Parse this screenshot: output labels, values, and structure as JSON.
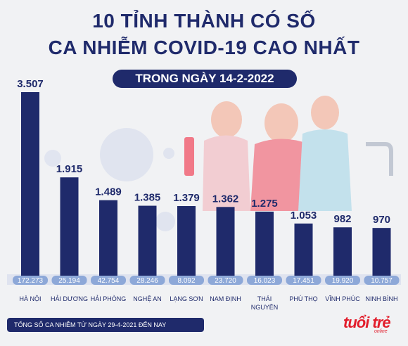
{
  "header": {
    "line1": "10 TỈNH THÀNH CÓ SỐ",
    "line2": "CA NHIỄM COVID-19 CAO NHẤT",
    "date_pill": "TRONG NGÀY 14-2-2022"
  },
  "legend": {
    "note": "TỔNG SỐ CA NHIỄM TỪ NGÀY 29-4-2021 ĐẾN NAY"
  },
  "logo": {
    "text": "tuổi trẻ",
    "sub": "online"
  },
  "colors": {
    "bar": "#1f2a6b",
    "background": "#f1f2f4",
    "logo": "#e21d2b"
  },
  "chart_data": {
    "type": "bar",
    "categories": [
      "HÀ NỘI",
      "HẢI DƯƠNG",
      "HẢI PHÒNG",
      "NGHỆ AN",
      "LẠNG SƠN",
      "NAM ĐỊNH",
      "THÁI NGUYÊN",
      "PHÚ THỌ",
      "VĨNH PHÚC",
      "NINH BÌNH"
    ],
    "category_lines": [
      [
        "HÀ NỘI"
      ],
      [
        "HẢI DƯƠNG"
      ],
      [
        "HẢI PHÒNG"
      ],
      [
        "NGHỆ AN"
      ],
      [
        "LẠNG SƠN"
      ],
      [
        "NAM ĐỊNH"
      ],
      [
        "THÁI",
        "NGUYÊN"
      ],
      [
        "PHÚ THỌ"
      ],
      [
        "VĨNH PHÚC"
      ],
      [
        "NINH BÌNH"
      ]
    ],
    "values": [
      3507,
      1915,
      1489,
      1385,
      1379,
      1362,
      1275,
      1053,
      982,
      970
    ],
    "value_labels": [
      "3.507",
      "1.915",
      "1.489",
      "1.385",
      "1.379",
      "1.362",
      "1.275",
      "1.053",
      "982",
      "970"
    ],
    "totals": [
      172273,
      25194,
      42754,
      28246,
      8092,
      23720,
      16023,
      17451,
      19920,
      10757
    ],
    "total_labels": [
      "172.273",
      "25.194",
      "42.754",
      "28.246",
      "8.092",
      "23.720",
      "16.023",
      "17.451",
      "19.920",
      "10.757"
    ],
    "ylim": [
      0,
      3507
    ],
    "grid": false,
    "legend": "bottom-left"
  }
}
